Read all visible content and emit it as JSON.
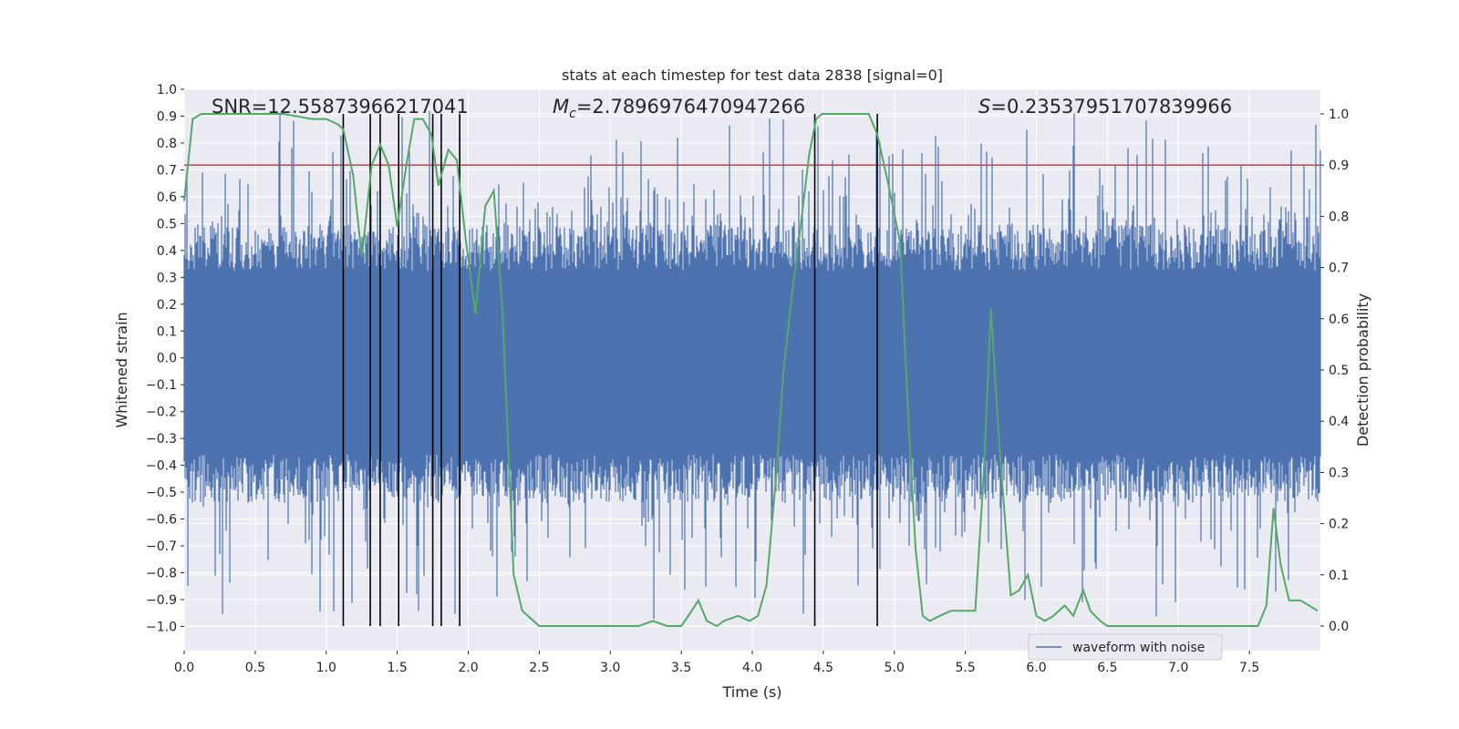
{
  "chart_data": {
    "type": "line",
    "title": "stats at each timestep for test data 2838 [signal=0]",
    "xlabel": "Time (s)",
    "ylabel": "Whitened strain",
    "y2label": "Detection probability",
    "xlim": [
      0,
      8
    ],
    "ylim": [
      -1.09,
      1.0
    ],
    "y2lim": [
      -0.048,
      1.048
    ],
    "xticks": [
      "0.0",
      "0.5",
      "1.0",
      "1.5",
      "2.0",
      "2.5",
      "3.0",
      "3.5",
      "4.0",
      "4.5",
      "5.0",
      "5.5",
      "6.0",
      "6.5",
      "7.0",
      "7.5"
    ],
    "yticks": [
      "1.0",
      "0.9",
      "0.8",
      "0.7",
      "0.6",
      "0.5",
      "0.4",
      "0.3",
      "0.2",
      "0.1",
      "0.0",
      "-0.1",
      "-0.2",
      "-0.3",
      "-0.4",
      "-0.5",
      "-0.6",
      "-0.7",
      "-0.8",
      "-0.9",
      "-1.0"
    ],
    "y2ticks": [
      "0.0",
      "0.1",
      "0.2",
      "0.3",
      "0.4",
      "0.5",
      "0.6",
      "0.7",
      "0.8",
      "0.9",
      "1.0"
    ],
    "annotations": {
      "snr": "SNR=12.55873966217041",
      "mc_symbol": "M",
      "mc_sub": "c",
      "mc_value": "=2.7896976470947266",
      "s_symbol": "S",
      "s_value": "=0.23537951707839966"
    },
    "threshold": 0.9,
    "waveform_noise": {
      "name": "waveform with noise",
      "color": "#4c72b0",
      "envelope_typical": 0.45,
      "envelope_peak": 0.92
    },
    "detection_probability": {
      "color": "#55a868",
      "x": [
        0.0,
        0.06,
        0.12,
        0.3,
        0.5,
        0.7,
        0.9,
        1.0,
        1.08,
        1.12,
        1.19,
        1.25,
        1.32,
        1.38,
        1.44,
        1.5,
        1.57,
        1.62,
        1.68,
        1.74,
        1.79,
        1.86,
        1.92,
        1.98,
        2.05,
        2.12,
        2.18,
        2.24,
        2.32,
        2.38,
        2.5,
        2.6,
        2.8,
        3.0,
        3.2,
        3.3,
        3.4,
        3.5,
        3.55,
        3.62,
        3.68,
        3.75,
        3.8,
        3.9,
        3.98,
        4.04,
        4.1,
        4.17,
        4.22,
        4.28,
        4.34,
        4.4,
        4.45,
        4.49,
        4.55,
        4.7,
        4.82,
        4.88,
        4.96,
        5.04,
        5.1,
        5.15,
        5.2,
        5.25,
        5.32,
        5.4,
        5.48,
        5.57,
        5.63,
        5.68,
        5.74,
        5.82,
        5.88,
        5.94,
        6.0,
        6.06,
        6.12,
        6.2,
        6.26,
        6.33,
        6.38,
        6.45,
        6.5,
        6.6,
        6.7,
        6.8,
        7.0,
        7.2,
        7.4,
        7.5,
        7.56,
        7.62,
        7.67,
        7.72,
        7.78,
        7.86,
        7.92,
        7.98
      ],
      "y": [
        0.83,
        0.99,
        1.0,
        1.0,
        1.0,
        1.0,
        0.99,
        0.99,
        0.98,
        0.97,
        0.88,
        0.72,
        0.9,
        0.94,
        0.9,
        0.78,
        0.91,
        0.99,
        0.99,
        0.96,
        0.86,
        0.93,
        0.91,
        0.76,
        0.61,
        0.82,
        0.85,
        0.62,
        0.1,
        0.03,
        0.0,
        0.0,
        0.0,
        0.0,
        0.0,
        0.01,
        0.0,
        0.0,
        0.02,
        0.05,
        0.01,
        0.0,
        0.01,
        0.02,
        0.01,
        0.02,
        0.08,
        0.3,
        0.5,
        0.65,
        0.78,
        0.92,
        0.99,
        1.0,
        1.0,
        1.0,
        1.0,
        0.96,
        0.86,
        0.75,
        0.4,
        0.15,
        0.02,
        0.01,
        0.02,
        0.03,
        0.03,
        0.03,
        0.3,
        0.62,
        0.35,
        0.06,
        0.07,
        0.1,
        0.02,
        0.01,
        0.02,
        0.04,
        0.02,
        0.07,
        0.03,
        0.01,
        0.0,
        0.0,
        0.0,
        0.0,
        0.0,
        0.0,
        0.0,
        0.0,
        0.0,
        0.04,
        0.23,
        0.12,
        0.05,
        0.05,
        0.04,
        0.03
      ]
    },
    "vertical_markers": [
      1.12,
      1.31,
      1.38,
      1.51,
      1.75,
      1.81,
      1.94,
      4.44,
      4.88
    ],
    "legend": {
      "entries": [
        "waveform with noise"
      ],
      "location": "lower-right"
    }
  },
  "colors": {
    "axes_bg": "#eaeaf2",
    "grid": "#ffffff",
    "waveform": "#4c72b0",
    "probability": "#55a868",
    "threshold": "#c44e52",
    "markers": "#000000"
  }
}
